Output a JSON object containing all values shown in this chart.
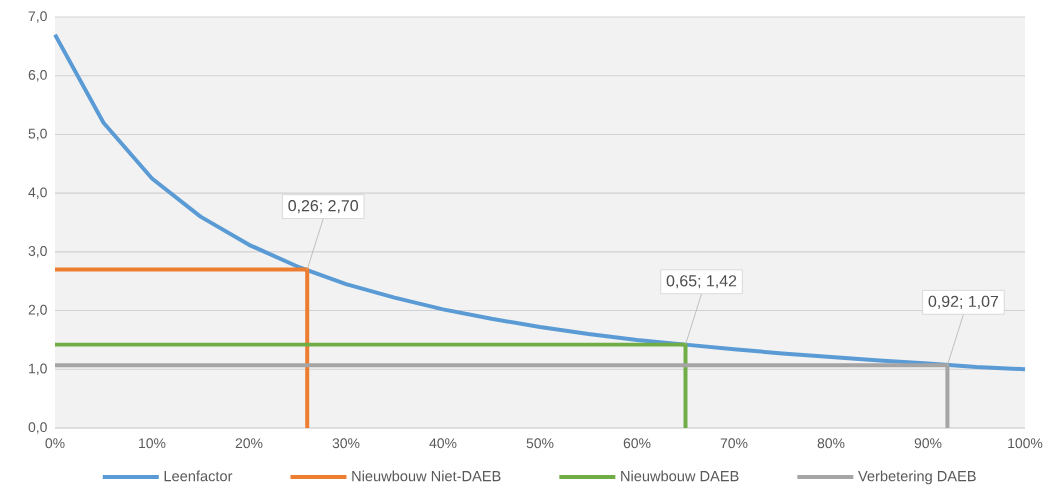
{
  "chart_data": {
    "type": "line",
    "xlim": [
      0,
      1
    ],
    "ylim": [
      0,
      7
    ],
    "xticks": [
      {
        "value": 0,
        "label": "0%"
      },
      {
        "value": 0.1,
        "label": "10%"
      },
      {
        "value": 0.2,
        "label": "20%"
      },
      {
        "value": 0.3,
        "label": "30%"
      },
      {
        "value": 0.4,
        "label": "40%"
      },
      {
        "value": 0.5,
        "label": "50%"
      },
      {
        "value": 0.6,
        "label": "60%"
      },
      {
        "value": 0.7,
        "label": "70%"
      },
      {
        "value": 0.8,
        "label": "80%"
      },
      {
        "value": 0.9,
        "label": "90%"
      },
      {
        "value": 1,
        "label": "100%"
      }
    ],
    "yticks": [
      {
        "value": 0,
        "label": "0,0"
      },
      {
        "value": 1,
        "label": "1,0"
      },
      {
        "value": 2,
        "label": "2,0"
      },
      {
        "value": 3,
        "label": "3,0"
      },
      {
        "value": 4,
        "label": "4,0"
      },
      {
        "value": 5,
        "label": "5,0"
      },
      {
        "value": 6,
        "label": "6,0"
      },
      {
        "value": 7,
        "label": "7,0"
      }
    ],
    "series": [
      {
        "name": "Leenfactor",
        "color": "#5b9bd5",
        "x": [
          0,
          0.05,
          0.1,
          0.15,
          0.2,
          0.25,
          0.3,
          0.35,
          0.4,
          0.45,
          0.5,
          0.55,
          0.6,
          0.65,
          0.7,
          0.75,
          0.8,
          0.85,
          0.9,
          0.95,
          1
        ],
        "values": [
          6.7,
          5.2,
          4.25,
          3.6,
          3.12,
          2.75,
          2.45,
          2.22,
          2.02,
          1.86,
          1.72,
          1.6,
          1.5,
          1.42,
          1.34,
          1.27,
          1.21,
          1.15,
          1.1,
          1.04,
          1.0
        ]
      },
      {
        "name": "Nieuwbouw Niet-DAEB",
        "color": "#ed7d31",
        "x": [
          0,
          0.26,
          0.26
        ],
        "values": [
          2.7,
          2.7,
          0
        ]
      },
      {
        "name": "Nieuwbouw DAEB",
        "color": "#70ad47",
        "x": [
          0,
          0.65,
          0.65
        ],
        "values": [
          1.42,
          1.42,
          0
        ]
      },
      {
        "name": "Verbetering DAEB",
        "color": "#a5a5a5",
        "x": [
          0,
          0.92,
          0.92
        ],
        "values": [
          1.07,
          1.07,
          0
        ]
      }
    ],
    "annotations": [
      {
        "text": "0,26; 2,70",
        "x": 0.26,
        "y": 2.7
      },
      {
        "text": "0,65; 1,42",
        "x": 0.65,
        "y": 1.42
      },
      {
        "text": "0,92; 1,07",
        "x": 0.92,
        "y": 1.07
      }
    ],
    "grid": "y",
    "legend": "bottom",
    "line_style": "solid"
  }
}
